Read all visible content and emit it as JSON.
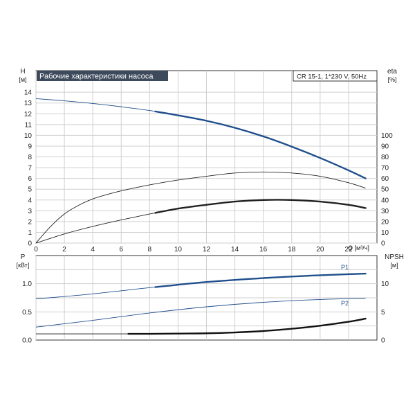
{
  "chart_data": [
    {
      "type": "line",
      "panel": "top",
      "title": "Рабочие характеристики насоса",
      "model_label": "CR 15-1, 1*230 V, 50Hz",
      "xlabel": "Q [м³/ч]",
      "ylabel_left": {
        "name": "H",
        "unit": "[м]"
      },
      "ylabel_right": {
        "name": "eta",
        "unit": "[%]"
      },
      "xlim": [
        0,
        24
      ],
      "xticks": [
        0,
        2,
        4,
        6,
        8,
        10,
        12,
        14,
        16,
        18,
        20,
        22
      ],
      "ylim_left": [
        0,
        16
      ],
      "yticks_left": [
        0,
        1,
        2,
        3,
        4,
        5,
        6,
        7,
        8,
        9,
        10,
        11,
        12,
        13,
        14
      ],
      "ylim_right": [
        0,
        160
      ],
      "yticks_right": [
        0,
        10,
        20,
        30,
        40,
        50,
        60,
        70,
        80,
        90,
        100
      ],
      "grid": true,
      "series": [
        {
          "axis": "left",
          "color": "#1f4e8c",
          "x": [
            0,
            2,
            4,
            6,
            8,
            10,
            12,
            14,
            16,
            18,
            20,
            22,
            23.2
          ],
          "y": [
            13.4,
            13.2,
            12.95,
            12.65,
            12.3,
            11.85,
            11.35,
            10.7,
            9.9,
            8.95,
            7.9,
            6.75,
            6.0
          ],
          "emphasis_from": 8.4
        },
        {
          "axis": "right",
          "color": "#222222",
          "x": [
            0,
            1,
            2,
            3,
            4,
            5,
            6,
            8,
            10,
            12,
            14,
            16,
            18,
            20,
            22,
            23.2
          ],
          "y": [
            0,
            15,
            27,
            35,
            41,
            45,
            48.5,
            54,
            58.5,
            62,
            65,
            66,
            65,
            62,
            56,
            51
          ],
          "emphasis_from": 99
        },
        {
          "axis": "right",
          "color": "#222222",
          "x": [
            0,
            2,
            4,
            6,
            8,
            10,
            12,
            14,
            16,
            18,
            20,
            22,
            23.2
          ],
          "y": [
            0,
            8.5,
            15.5,
            21.5,
            27,
            32,
            35.5,
            38.5,
            40,
            40,
            38.5,
            35.5,
            32.5
          ],
          "emphasis_from": 8.4
        }
      ]
    },
    {
      "type": "line",
      "panel": "bottom",
      "ylabel_left": {
        "name": "P",
        "unit": "[кВт]"
      },
      "ylabel_right": {
        "name": "NPSH",
        "unit": "[м]"
      },
      "xlim": [
        0,
        24
      ],
      "ylim_left": [
        0,
        1.5
      ],
      "yticks_left": [
        0,
        0.5,
        1.0
      ],
      "ytick_labels_left": [
        "0.0",
        "0.5",
        "1.0"
      ],
      "ylim_right": [
        0,
        15
      ],
      "yticks_right": [
        0,
        5,
        10
      ],
      "grid": true,
      "series": [
        {
          "name": "P1",
          "axis": "left",
          "color": "#1f4e8c",
          "x": [
            0,
            4,
            8,
            12,
            16,
            20,
            23.2
          ],
          "y": [
            0.73,
            0.82,
            0.93,
            1.03,
            1.1,
            1.15,
            1.18
          ],
          "emphasis_from": 8.4
        },
        {
          "name": "P2",
          "axis": "left",
          "color": "#1f4e8c",
          "x": [
            0,
            4,
            8,
            12,
            16,
            20,
            23.2
          ],
          "y": [
            0.23,
            0.35,
            0.48,
            0.59,
            0.67,
            0.72,
            0.74
          ],
          "emphasis_from": 99
        },
        {
          "name": "",
          "axis": "right",
          "color": "#111111",
          "x": [
            0,
            4,
            8,
            10,
            12,
            14,
            16,
            18,
            20,
            22,
            23.2
          ],
          "y": [
            1.1,
            1.1,
            1.1,
            1.15,
            1.2,
            1.35,
            1.6,
            2.0,
            2.55,
            3.25,
            3.8
          ],
          "emphasis_from": 6.5
        }
      ]
    }
  ]
}
